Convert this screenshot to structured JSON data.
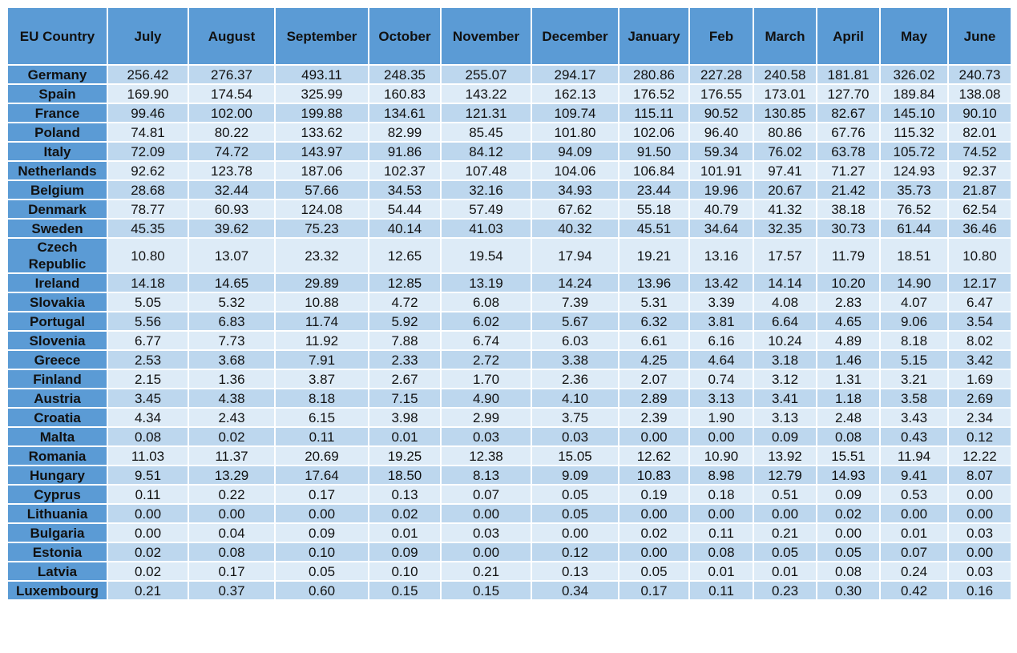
{
  "table": {
    "header": [
      "EU Country",
      "July",
      "August",
      "September",
      "October",
      "November",
      "December",
      "January",
      "Feb",
      "March",
      "April",
      "May",
      "June"
    ],
    "rows": [
      [
        "Germany",
        "256.42",
        "276.37",
        "493.11",
        "248.35",
        "255.07",
        "294.17",
        "280.86",
        "227.28",
        "240.58",
        "181.81",
        "326.02",
        "240.73"
      ],
      [
        "Spain",
        "169.90",
        "174.54",
        "325.99",
        "160.83",
        "143.22",
        "162.13",
        "176.52",
        "176.55",
        "173.01",
        "127.70",
        "189.84",
        "138.08"
      ],
      [
        "France",
        "99.46",
        "102.00",
        "199.88",
        "134.61",
        "121.31",
        "109.74",
        "115.11",
        "90.52",
        "130.85",
        "82.67",
        "145.10",
        "90.10"
      ],
      [
        "Poland",
        "74.81",
        "80.22",
        "133.62",
        "82.99",
        "85.45",
        "101.80",
        "102.06",
        "96.40",
        "80.86",
        "67.76",
        "115.32",
        "82.01"
      ],
      [
        "Italy",
        "72.09",
        "74.72",
        "143.97",
        "91.86",
        "84.12",
        "94.09",
        "91.50",
        "59.34",
        "76.02",
        "63.78",
        "105.72",
        "74.52"
      ],
      [
        "Netherlands",
        "92.62",
        "123.78",
        "187.06",
        "102.37",
        "107.48",
        "104.06",
        "106.84",
        "101.91",
        "97.41",
        "71.27",
        "124.93",
        "92.37"
      ],
      [
        "Belgium",
        "28.68",
        "32.44",
        "57.66",
        "34.53",
        "32.16",
        "34.93",
        "23.44",
        "19.96",
        "20.67",
        "21.42",
        "35.73",
        "21.87"
      ],
      [
        "Denmark",
        "78.77",
        "60.93",
        "124.08",
        "54.44",
        "57.49",
        "67.62",
        "55.18",
        "40.79",
        "41.32",
        "38.18",
        "76.52",
        "62.54"
      ],
      [
        "Sweden",
        "45.35",
        "39.62",
        "75.23",
        "40.14",
        "41.03",
        "40.32",
        "45.51",
        "34.64",
        "32.35",
        "30.73",
        "61.44",
        "36.46"
      ],
      [
        "Czech Republic",
        "10.80",
        "13.07",
        "23.32",
        "12.65",
        "19.54",
        "17.94",
        "19.21",
        "13.16",
        "17.57",
        "11.79",
        "18.51",
        "10.80"
      ],
      [
        "Ireland",
        "14.18",
        "14.65",
        "29.89",
        "12.85",
        "13.19",
        "14.24",
        "13.96",
        "13.42",
        "14.14",
        "10.20",
        "14.90",
        "12.17"
      ],
      [
        "Slovakia",
        "5.05",
        "5.32",
        "10.88",
        "4.72",
        "6.08",
        "7.39",
        "5.31",
        "3.39",
        "4.08",
        "2.83",
        "4.07",
        "6.47"
      ],
      [
        "Portugal",
        "5.56",
        "6.83",
        "11.74",
        "5.92",
        "6.02",
        "5.67",
        "6.32",
        "3.81",
        "6.64",
        "4.65",
        "9.06",
        "3.54"
      ],
      [
        "Slovenia",
        "6.77",
        "7.73",
        "11.92",
        "7.88",
        "6.74",
        "6.03",
        "6.61",
        "6.16",
        "10.24",
        "4.89",
        "8.18",
        "8.02"
      ],
      [
        "Greece",
        "2.53",
        "3.68",
        "7.91",
        "2.33",
        "2.72",
        "3.38",
        "4.25",
        "4.64",
        "3.18",
        "1.46",
        "5.15",
        "3.42"
      ],
      [
        "Finland",
        "2.15",
        "1.36",
        "3.87",
        "2.67",
        "1.70",
        "2.36",
        "2.07",
        "0.74",
        "3.12",
        "1.31",
        "3.21",
        "1.69"
      ],
      [
        "Austria",
        "3.45",
        "4.38",
        "8.18",
        "7.15",
        "4.90",
        "4.10",
        "2.89",
        "3.13",
        "3.41",
        "1.18",
        "3.58",
        "2.69"
      ],
      [
        "Croatia",
        "4.34",
        "2.43",
        "6.15",
        "3.98",
        "2.99",
        "3.75",
        "2.39",
        "1.90",
        "3.13",
        "2.48",
        "3.43",
        "2.34"
      ],
      [
        "Malta",
        "0.08",
        "0.02",
        "0.11",
        "0.01",
        "0.03",
        "0.03",
        "0.00",
        "0.00",
        "0.09",
        "0.08",
        "0.43",
        "0.12"
      ],
      [
        "Romania",
        "11.03",
        "11.37",
        "20.69",
        "19.25",
        "12.38",
        "15.05",
        "12.62",
        "10.90",
        "13.92",
        "15.51",
        "11.94",
        "12.22"
      ],
      [
        "Hungary",
        "9.51",
        "13.29",
        "17.64",
        "18.50",
        "8.13",
        "9.09",
        "10.83",
        "8.98",
        "12.79",
        "14.93",
        "9.41",
        "8.07"
      ],
      [
        "Cyprus",
        "0.11",
        "0.22",
        "0.17",
        "0.13",
        "0.07",
        "0.05",
        "0.19",
        "0.18",
        "0.51",
        "0.09",
        "0.53",
        "0.00"
      ],
      [
        "Lithuania",
        "0.00",
        "0.00",
        "0.00",
        "0.02",
        "0.00",
        "0.05",
        "0.00",
        "0.00",
        "0.00",
        "0.02",
        "0.00",
        "0.00"
      ],
      [
        "Bulgaria",
        "0.00",
        "0.04",
        "0.09",
        "0.01",
        "0.03",
        "0.00",
        "0.02",
        "0.11",
        "0.21",
        "0.00",
        "0.01",
        "0.03"
      ],
      [
        "Estonia",
        "0.02",
        "0.08",
        "0.10",
        "0.09",
        "0.00",
        "0.12",
        "0.00",
        "0.08",
        "0.05",
        "0.05",
        "0.07",
        "0.00"
      ],
      [
        "Latvia",
        "0.02",
        "0.17",
        "0.05",
        "0.10",
        "0.21",
        "0.13",
        "0.05",
        "0.01",
        "0.01",
        "0.08",
        "0.24",
        "0.03"
      ],
      [
        "Luxembourg",
        "0.21",
        "0.37",
        "0.60",
        "0.15",
        "0.15",
        "0.34",
        "0.17",
        "0.11",
        "0.23",
        "0.30",
        "0.42",
        "0.16"
      ]
    ]
  }
}
